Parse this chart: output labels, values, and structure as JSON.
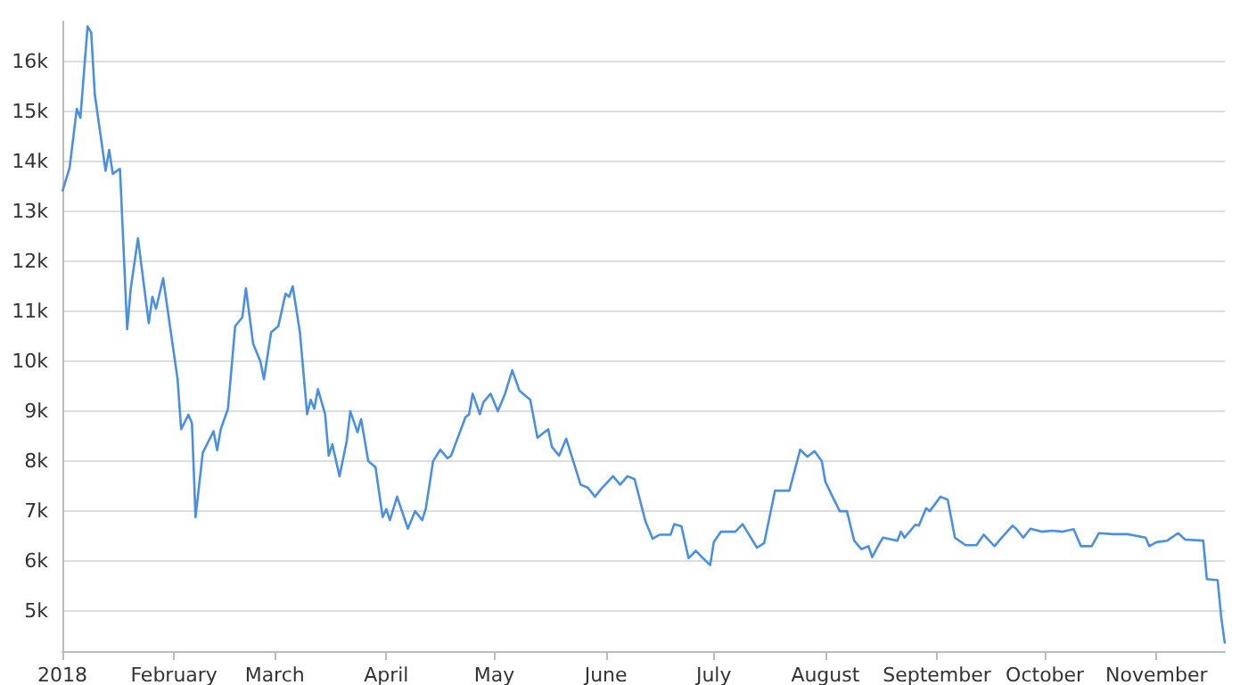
{
  "chart_data": {
    "type": "line",
    "x": [
      "2018-01-01",
      "2018-01-03",
      "2018-01-05",
      "2018-01-06",
      "2018-01-08",
      "2018-01-09",
      "2018-01-10",
      "2018-01-13",
      "2018-01-14",
      "2018-01-15",
      "2018-01-17",
      "2018-01-19",
      "2018-01-20",
      "2018-01-22",
      "2018-01-25",
      "2018-01-26",
      "2018-01-27",
      "2018-01-29",
      "2018-02-02",
      "2018-02-03",
      "2018-02-05",
      "2018-02-06",
      "2018-02-07",
      "2018-02-09",
      "2018-02-12",
      "2018-02-13",
      "2018-02-14",
      "2018-02-16",
      "2018-02-17",
      "2018-02-18",
      "2018-02-20",
      "2018-02-21",
      "2018-02-23",
      "2018-02-25",
      "2018-02-26",
      "2018-02-28",
      "2018-03-02",
      "2018-03-04",
      "2018-03-05",
      "2018-03-06",
      "2018-03-08",
      "2018-03-10",
      "2018-03-11",
      "2018-03-12",
      "2018-03-13",
      "2018-03-15",
      "2018-03-16",
      "2018-03-17",
      "2018-03-19",
      "2018-03-21",
      "2018-03-22",
      "2018-03-24",
      "2018-03-25",
      "2018-03-27",
      "2018-03-29",
      "2018-03-31",
      "2018-04-01",
      "2018-04-02",
      "2018-04-04",
      "2018-04-07",
      "2018-04-09",
      "2018-04-11",
      "2018-04-12",
      "2018-04-14",
      "2018-04-16",
      "2018-04-18",
      "2018-04-19",
      "2018-04-23",
      "2018-04-24",
      "2018-04-25",
      "2018-04-27",
      "2018-04-28",
      "2018-04-30",
      "2018-05-02",
      "2018-05-04",
      "2018-05-06",
      "2018-05-08",
      "2018-05-11",
      "2018-05-13",
      "2018-05-16",
      "2018-05-17",
      "2018-05-19",
      "2018-05-21",
      "2018-05-25",
      "2018-05-27",
      "2018-05-29",
      "2018-05-31",
      "2018-06-03",
      "2018-06-05",
      "2018-06-07",
      "2018-06-09",
      "2018-06-12",
      "2018-06-14",
      "2018-06-16",
      "2018-06-19",
      "2018-06-20",
      "2018-06-22",
      "2018-06-24",
      "2018-06-26",
      "2018-06-28",
      "2018-06-30",
      "2018-07-01",
      "2018-07-03",
      "2018-07-07",
      "2018-07-09",
      "2018-07-13",
      "2018-07-15",
      "2018-07-18",
      "2018-07-22",
      "2018-07-25",
      "2018-07-27",
      "2018-07-29",
      "2018-07-31",
      "2018-08-01",
      "2018-08-03",
      "2018-08-05",
      "2018-08-07",
      "2018-08-09",
      "2018-08-11",
      "2018-08-13",
      "2018-08-14",
      "2018-08-16",
      "2018-08-17",
      "2018-08-21",
      "2018-08-22",
      "2018-08-23",
      "2018-08-26",
      "2018-08-27",
      "2018-08-29",
      "2018-08-30",
      "2018-09-02",
      "2018-09-04",
      "2018-09-06",
      "2018-09-09",
      "2018-09-12",
      "2018-09-14",
      "2018-09-17",
      "2018-09-19",
      "2018-09-22",
      "2018-09-23",
      "2018-09-25",
      "2018-09-27",
      "2018-09-30",
      "2018-10-03",
      "2018-10-06",
      "2018-10-09",
      "2018-10-11",
      "2018-10-14",
      "2018-10-16",
      "2018-10-20",
      "2018-10-24",
      "2018-10-29",
      "2018-10-30",
      "2018-11-01",
      "2018-11-04",
      "2018-11-07",
      "2018-11-09",
      "2018-11-14",
      "2018-11-15",
      "2018-11-18",
      "2018-11-19",
      "2018-11-20"
    ],
    "series": [
      {
        "color": "#4a90e2",
        "values": [
          13400,
          13870,
          15050,
          14870,
          16700,
          16580,
          15340,
          13810,
          14230,
          13750,
          13850,
          10640,
          11460,
          12460,
          10760,
          11290,
          11050,
          11660,
          9640,
          8640,
          8930,
          8760,
          6880,
          8170,
          8600,
          8220,
          8640,
          9050,
          9870,
          10700,
          10880,
          11460,
          10350,
          10000,
          9640,
          10580,
          10700,
          11350,
          11290,
          11500,
          10580,
          8940,
          9230,
          9050,
          9440,
          8940,
          8110,
          8340,
          7700,
          8400,
          9000,
          8580,
          8840,
          8000,
          7880,
          6880,
          7040,
          6820,
          7290,
          6650,
          7000,
          6820,
          7060,
          8000,
          8230,
          8060,
          8110,
          8880,
          8940,
          9350,
          8940,
          9180,
          9350,
          9000,
          9350,
          9820,
          9410,
          9230,
          8470,
          8640,
          8290,
          8110,
          8450,
          7530,
          7470,
          7290,
          7470,
          7700,
          7530,
          7700,
          7640,
          6800,
          6450,
          6530,
          6530,
          6740,
          6700,
          6060,
          6210,
          6060,
          5920,
          6380,
          6590,
          6590,
          6740,
          6270,
          6360,
          7410,
          7410,
          8230,
          8090,
          8200,
          8000,
          7590,
          7290,
          7000,
          7000,
          6410,
          6240,
          6300,
          6080,
          6350,
          6470,
          6410,
          6590,
          6470,
          6730,
          6710,
          7060,
          7000,
          7290,
          7230,
          6470,
          6320,
          6320,
          6530,
          6300,
          6470,
          6710,
          6650,
          6470,
          6650,
          6590,
          6610,
          6590,
          6640,
          6300,
          6300,
          6560,
          6540,
          6540,
          6470,
          6300,
          6380,
          6410,
          6560,
          6430,
          6410,
          5640,
          5620,
          4880,
          4350
        ]
      }
    ],
    "xlim": [
      "2018-01-01",
      "2018-11-20"
    ],
    "xticks": [
      {
        "value": "2018-01-01",
        "label": "2018"
      },
      {
        "value": "2018-02-01",
        "label": "February"
      },
      {
        "value": "2018-03-01",
        "label": "March"
      },
      {
        "value": "2018-04-01",
        "label": "April"
      },
      {
        "value": "2018-05-01",
        "label": "May"
      },
      {
        "value": "2018-06-01",
        "label": "June"
      },
      {
        "value": "2018-07-01",
        "label": "July"
      },
      {
        "value": "2018-08-01",
        "label": "August"
      },
      {
        "value": "2018-09-01",
        "label": "September"
      },
      {
        "value": "2018-10-01",
        "label": "October"
      },
      {
        "value": "2018-11-01",
        "label": "November"
      }
    ],
    "ylim": [
      4200,
      16800
    ],
    "yticks": [
      {
        "value": 5000,
        "label": "5k"
      },
      {
        "value": 6000,
        "label": "6k"
      },
      {
        "value": 7000,
        "label": "7k"
      },
      {
        "value": 8000,
        "label": "8k"
      },
      {
        "value": 9000,
        "label": "9k"
      },
      {
        "value": 10000,
        "label": "10k"
      },
      {
        "value": 11000,
        "label": "11k"
      },
      {
        "value": 12000,
        "label": "12k"
      },
      {
        "value": 13000,
        "label": "13k"
      },
      {
        "value": 14000,
        "label": "14k"
      },
      {
        "value": 15000,
        "label": "15k"
      },
      {
        "value": 16000,
        "label": "16k"
      }
    ],
    "grid": "y",
    "marker": "none",
    "line_style": "solid"
  }
}
